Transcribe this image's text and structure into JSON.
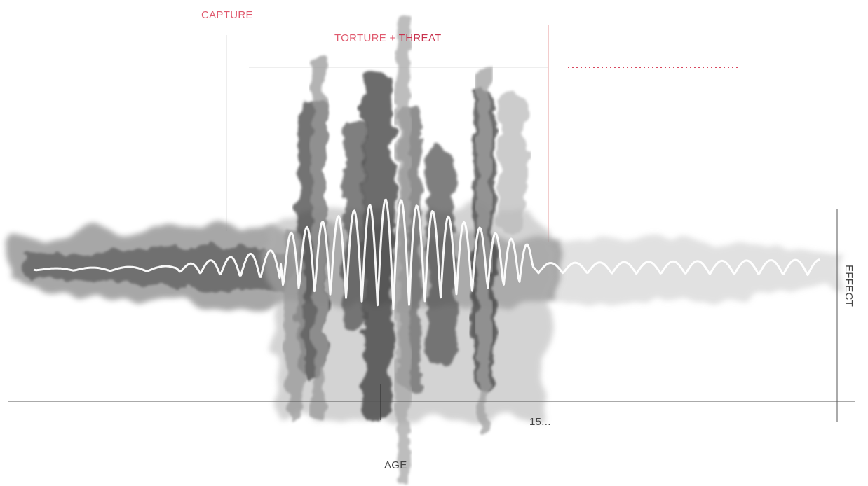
{
  "labels": {
    "capture": "CAPTURE",
    "torture": "TORTURE + ",
    "threat": "THREAT",
    "age_mark": "15...",
    "x_axis": "AGE",
    "y_axis": "EFFECT"
  }
}
